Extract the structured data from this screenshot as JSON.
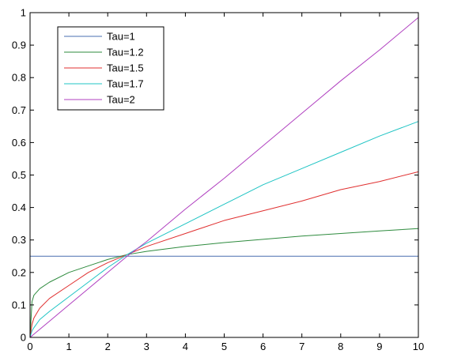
{
  "chart_data": {
    "type": "line",
    "title": "",
    "xlabel": "",
    "ylabel": "",
    "xlim": [
      0,
      10
    ],
    "ylim": [
      0,
      1
    ],
    "x_ticks": [
      "0",
      "1",
      "2",
      "3",
      "4",
      "5",
      "6",
      "7",
      "8",
      "9",
      "10"
    ],
    "y_ticks": [
      "0",
      "0.1",
      "0.2",
      "0.3",
      "0.4",
      "0.5",
      "0.6",
      "0.7",
      "0.8",
      "0.9",
      "1"
    ],
    "grid": false,
    "legend_position": "top-left",
    "x": [
      0,
      0.05,
      0.1,
      0.25,
      0.5,
      1,
      1.5,
      2,
      2.5,
      3,
      4,
      5,
      6,
      7,
      8,
      9,
      10
    ],
    "series": [
      {
        "name": "Tau=1",
        "color": "#4a6fb0",
        "values": [
          0.25,
          0.25,
          0.25,
          0.25,
          0.25,
          0.25,
          0.25,
          0.25,
          0.25,
          0.25,
          0.25,
          0.25,
          0.25,
          0.25,
          0.25,
          0.25,
          0.25
        ]
      },
      {
        "name": "Tau=1.2",
        "color": "#2e8b3e",
        "values": [
          0.0,
          0.11,
          0.13,
          0.15,
          0.17,
          0.2,
          0.22,
          0.24,
          0.255,
          0.265,
          0.28,
          0.292,
          0.302,
          0.312,
          0.32,
          0.328,
          0.335
        ]
      },
      {
        "name": "Tau=1.5",
        "color": "#e03030",
        "values": [
          0.0,
          0.04,
          0.06,
          0.09,
          0.12,
          0.16,
          0.2,
          0.23,
          0.255,
          0.28,
          0.32,
          0.36,
          0.39,
          0.42,
          0.455,
          0.48,
          0.51
        ]
      },
      {
        "name": "Tau=1.7",
        "color": "#1fc4c4",
        "values": [
          0.0,
          0.02,
          0.03,
          0.055,
          0.08,
          0.125,
          0.17,
          0.215,
          0.255,
          0.29,
          0.35,
          0.41,
          0.47,
          0.52,
          0.57,
          0.62,
          0.665
        ]
      },
      {
        "name": "Tau=2",
        "color": "#b040c0",
        "values": [
          0.0,
          0.005,
          0.01,
          0.025,
          0.05,
          0.1,
          0.15,
          0.2,
          0.25,
          0.295,
          0.395,
          0.49,
          0.59,
          0.69,
          0.79,
          0.885,
          0.985
        ]
      }
    ]
  }
}
